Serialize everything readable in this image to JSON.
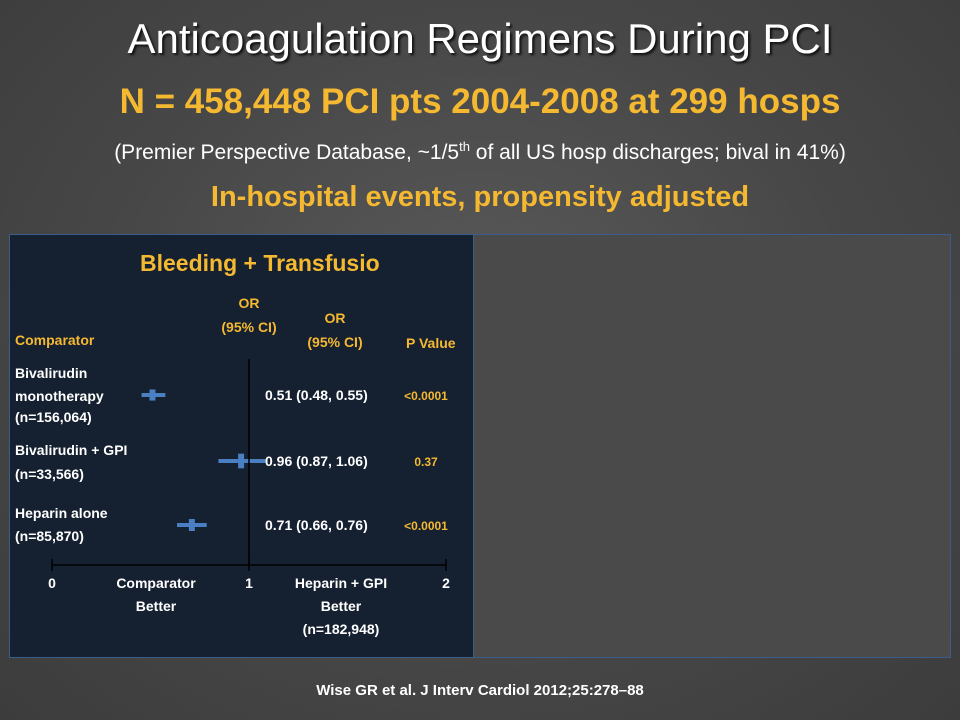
{
  "slide": {
    "title": "Anticoagulation Regimens During PCI",
    "subtitle": "N = 458,448 PCI pts 2004-2008 at 299 hosps",
    "source_note_pre": "(Premier Perspective Database, ~1/5",
    "source_note_sup": "th",
    "source_note_post": " of all US hosp discharges; bival in 41%)",
    "section_heading": "In-hospital events, propensity adjusted",
    "citation": "Wise GR et al. J Interv Cardiol 2012;25:278–88"
  },
  "colors": {
    "heading_yellow": "#f5b931",
    "marker_blue": "#4a7fc1",
    "panel_navy": "#152030"
  },
  "chart_data": {
    "type": "forest",
    "title": "Bleeding + Transfusio",
    "headers": {
      "comparator": "Comparator",
      "or_plot": [
        "OR",
        "(95% CI)"
      ],
      "or_text": [
        "OR",
        "(95% CI)"
      ],
      "p_value": "P Value"
    },
    "xlim": [
      0,
      2
    ],
    "x_ticks": [
      "0",
      "1",
      "2"
    ],
    "x_labels": {
      "left": [
        "Comparator",
        "Better"
      ],
      "right": [
        "Heparin + GPI",
        "Better",
        "(n=182,948)"
      ]
    },
    "rows": [
      {
        "label": [
          "Bivalirudin",
          "monotherapy",
          "(n=156,064)"
        ],
        "or": 0.51,
        "ci": [
          0.48,
          0.55
        ],
        "or_text": "0.51 (0.48, 0.55)",
        "p": "<0.0001"
      },
      {
        "label": [
          "Bivalirudin + GPI",
          "(n=33,566)"
        ],
        "or": 0.96,
        "ci": [
          0.87,
          1.06
        ],
        "or_text": "0.96 (0.87, 1.06)",
        "p": "0.37"
      },
      {
        "label": [
          "Heparin alone",
          "(n=85,870)"
        ],
        "or": 0.71,
        "ci": [
          0.66,
          0.76
        ],
        "or_text": "0.71 (0.66, 0.76)",
        "p": "<0.0001"
      }
    ]
  }
}
